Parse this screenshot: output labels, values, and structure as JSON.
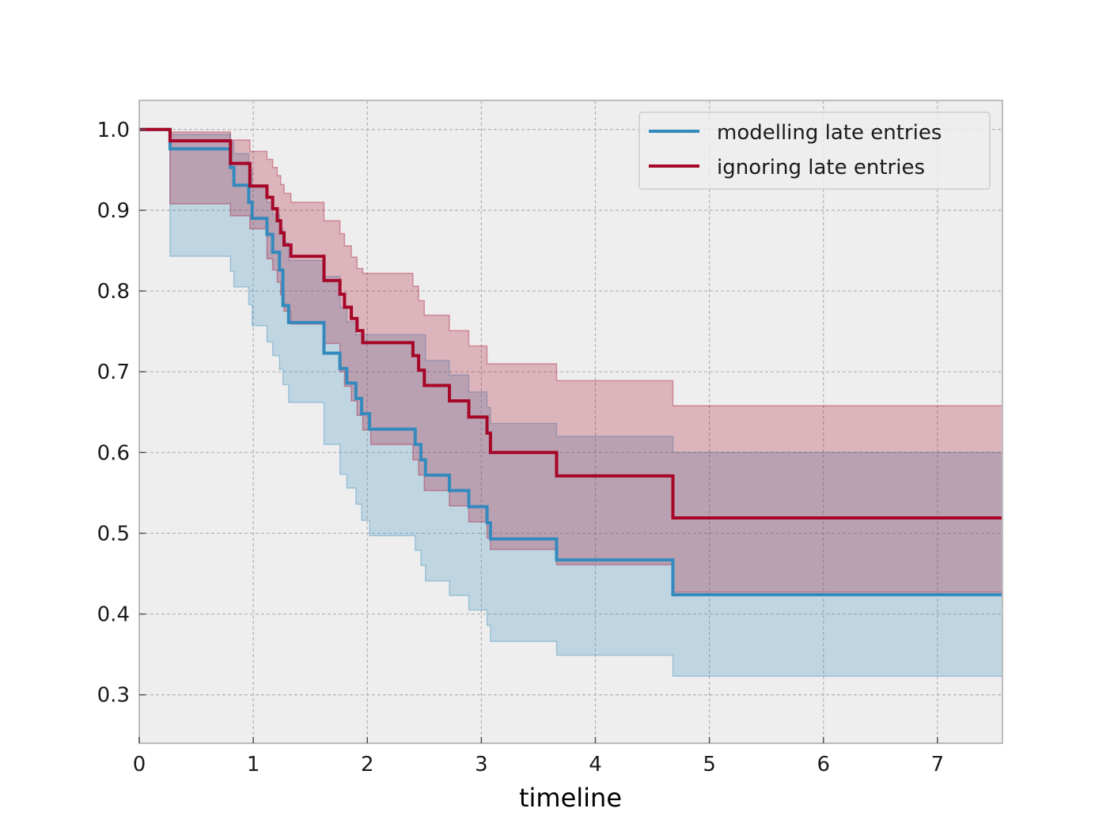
{
  "chart_data": {
    "type": "line",
    "step": true,
    "title": "",
    "xlabel": "timeline",
    "ylabel": "",
    "xlim": [
      0,
      7.57
    ],
    "ylim": [
      0.24,
      1.036
    ],
    "xticks": [
      0,
      1,
      2,
      3,
      4,
      5,
      6,
      7
    ],
    "yticks": [
      0.3,
      0.4,
      0.5,
      0.6,
      0.7,
      0.8,
      0.9,
      1.0
    ],
    "xtick_labels": [
      "0",
      "1",
      "2",
      "3",
      "4",
      "5",
      "6",
      "7"
    ],
    "ytick_labels": [
      "0.3",
      "0.4",
      "0.5",
      "0.6",
      "0.7",
      "0.8",
      "0.9",
      "1.0"
    ],
    "grid": true,
    "legend_position": "top-right",
    "background": "#eeeeee",
    "series": [
      {
        "name": "modelling late entries",
        "color": "#348abd",
        "x": [
          0,
          0.27,
          0.8,
          0.83,
          0.96,
          0.99,
          1.12,
          1.17,
          1.23,
          1.26,
          1.31,
          1.62,
          1.76,
          1.82,
          1.9,
          1.95,
          2.02,
          2.42,
          2.47,
          2.51,
          2.72,
          2.89,
          3.05,
          3.08,
          3.66,
          4.68,
          7.57
        ],
        "y": [
          1.0,
          0.976,
          0.953,
          0.931,
          0.91,
          0.89,
          0.87,
          0.848,
          0.826,
          0.782,
          0.761,
          0.723,
          0.704,
          0.686,
          0.667,
          0.648,
          0.629,
          0.61,
          0.591,
          0.572,
          0.553,
          0.533,
          0.513,
          0.493,
          0.467,
          0.424,
          0.424
        ],
        "lower": [
          1.0,
          0.843,
          0.824,
          0.805,
          0.783,
          0.757,
          0.737,
          0.72,
          0.703,
          0.684,
          0.662,
          0.61,
          0.573,
          0.556,
          0.536,
          0.516,
          0.497,
          0.479,
          0.46,
          0.441,
          0.423,
          0.405,
          0.386,
          0.366,
          0.349,
          0.323,
          0.274
        ],
        "upper": [
          1.0,
          0.994,
          0.985,
          0.97,
          0.95,
          0.93,
          0.91,
          0.895,
          0.877,
          0.86,
          0.838,
          0.818,
          0.78,
          0.762,
          0.746,
          0.746,
          0.746,
          0.746,
          0.746,
          0.714,
          0.696,
          0.675,
          0.656,
          0.636,
          0.62,
          0.6,
          0.569
        ]
      },
      {
        "name": "ignoring late entries",
        "color": "#a60628",
        "x": [
          0,
          0.27,
          0.8,
          0.97,
          1.12,
          1.17,
          1.21,
          1.24,
          1.27,
          1.33,
          1.62,
          1.76,
          1.8,
          1.86,
          1.91,
          1.96,
          2.03,
          2.4,
          2.45,
          2.5,
          2.72,
          2.89,
          3.05,
          3.08,
          3.66,
          4.68,
          7.57
        ],
        "y": [
          1.0,
          0.986,
          0.958,
          0.93,
          0.916,
          0.902,
          0.887,
          0.872,
          0.857,
          0.843,
          0.813,
          0.796,
          0.78,
          0.766,
          0.751,
          0.736,
          0.736,
          0.72,
          0.702,
          0.683,
          0.664,
          0.644,
          0.624,
          0.6,
          0.571,
          0.519,
          0.519
        ],
        "lower": [
          1.0,
          0.908,
          0.893,
          0.877,
          0.84,
          0.826,
          0.811,
          0.795,
          0.775,
          0.759,
          0.735,
          0.7,
          0.682,
          0.664,
          0.646,
          0.628,
          0.61,
          0.591,
          0.572,
          0.553,
          0.534,
          0.514,
          0.494,
          0.48,
          0.461,
          0.427,
          0.355
        ],
        "upper": [
          1.0,
          0.997,
          0.987,
          0.973,
          0.963,
          0.953,
          0.943,
          0.932,
          0.921,
          0.91,
          0.887,
          0.871,
          0.856,
          0.842,
          0.828,
          0.822,
          0.822,
          0.806,
          0.788,
          0.77,
          0.751,
          0.732,
          0.71,
          0.71,
          0.689,
          0.658,
          0.658
        ]
      }
    ]
  }
}
